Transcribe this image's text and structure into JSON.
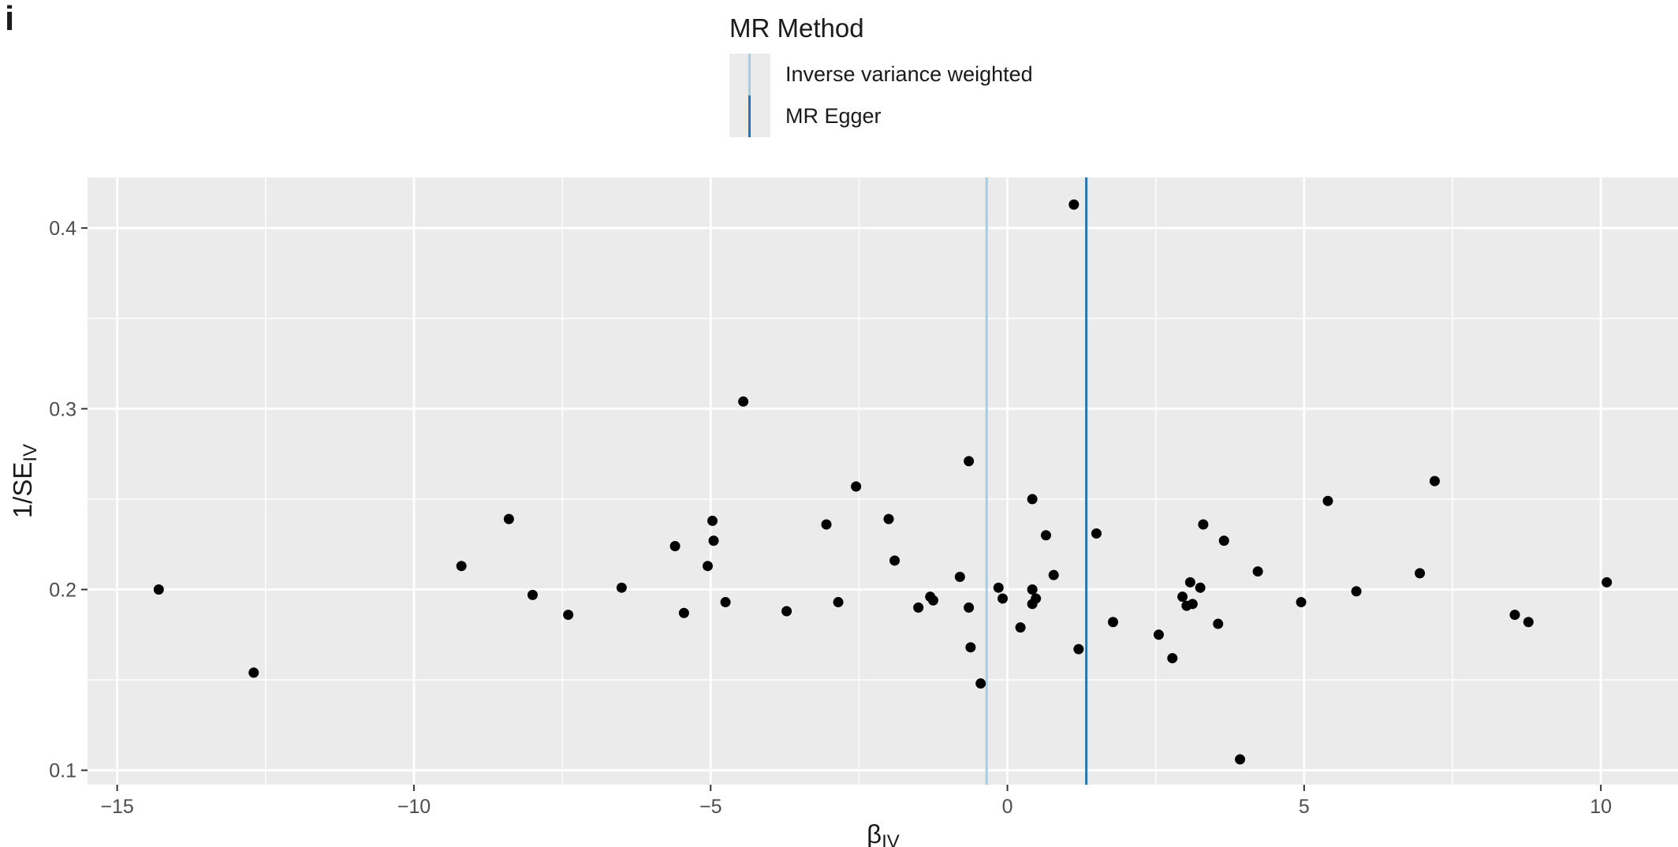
{
  "panel_label": "i",
  "legend": {
    "title": "MR Method",
    "items": [
      {
        "label": "Inverse variance weighted",
        "color": "#a6cee3"
      },
      {
        "label": "MR Egger",
        "color": "#1f78b4"
      }
    ]
  },
  "chart_data": {
    "type": "scatter",
    "xlabel_main": "β",
    "xlabel_sub": "IV",
    "ylabel_main": "1/SE",
    "ylabel_sub": "IV",
    "xlim": [
      -15.5,
      11.3
    ],
    "ylim": [
      0.092,
      0.428
    ],
    "xticks": [
      -15,
      -10,
      -5,
      0,
      5,
      10
    ],
    "xtick_labels": [
      "−15",
      "−10",
      "−5",
      "0",
      "5",
      "10"
    ],
    "yticks": [
      0.1,
      0.2,
      0.3,
      0.4
    ],
    "ytick_labels": [
      "0.1",
      "0.2",
      "0.3",
      "0.4"
    ],
    "panel_background": "#ebebeb",
    "grid": true,
    "vlines": [
      {
        "method": "Inverse variance weighted",
        "x": -0.35,
        "color": "#a6cee3"
      },
      {
        "method": "MR Egger",
        "x": 1.33,
        "color": "#1f78b4"
      }
    ],
    "points": [
      {
        "x": -14.3,
        "y": 0.2
      },
      {
        "x": -12.7,
        "y": 0.154
      },
      {
        "x": -9.2,
        "y": 0.213
      },
      {
        "x": -8.4,
        "y": 0.239
      },
      {
        "x": -8.0,
        "y": 0.197
      },
      {
        "x": -7.4,
        "y": 0.186
      },
      {
        "x": -6.5,
        "y": 0.201
      },
      {
        "x": -5.6,
        "y": 0.224
      },
      {
        "x": -5.45,
        "y": 0.187
      },
      {
        "x": -5.05,
        "y": 0.213
      },
      {
        "x": -4.97,
        "y": 0.238
      },
      {
        "x": -4.95,
        "y": 0.227
      },
      {
        "x": -4.75,
        "y": 0.193
      },
      {
        "x": -4.45,
        "y": 0.304
      },
      {
        "x": -3.72,
        "y": 0.188
      },
      {
        "x": -3.05,
        "y": 0.236
      },
      {
        "x": -2.85,
        "y": 0.193
      },
      {
        "x": -2.55,
        "y": 0.257
      },
      {
        "x": -2.0,
        "y": 0.239
      },
      {
        "x": -1.9,
        "y": 0.216
      },
      {
        "x": -1.5,
        "y": 0.19
      },
      {
        "x": -1.3,
        "y": 0.196
      },
      {
        "x": -1.25,
        "y": 0.194
      },
      {
        "x": -0.8,
        "y": 0.207
      },
      {
        "x": -0.65,
        "y": 0.271
      },
      {
        "x": -0.65,
        "y": 0.19
      },
      {
        "x": -0.62,
        "y": 0.168
      },
      {
        "x": -0.45,
        "y": 0.148
      },
      {
        "x": -0.15,
        "y": 0.201
      },
      {
        "x": -0.08,
        "y": 0.195
      },
      {
        "x": 0.22,
        "y": 0.179
      },
      {
        "x": 0.42,
        "y": 0.25
      },
      {
        "x": 0.42,
        "y": 0.2
      },
      {
        "x": 0.42,
        "y": 0.192
      },
      {
        "x": 0.48,
        "y": 0.195
      },
      {
        "x": 0.65,
        "y": 0.23
      },
      {
        "x": 0.78,
        "y": 0.208
      },
      {
        "x": 1.12,
        "y": 0.413
      },
      {
        "x": 1.2,
        "y": 0.167
      },
      {
        "x": 1.5,
        "y": 0.231
      },
      {
        "x": 1.78,
        "y": 0.182
      },
      {
        "x": 2.55,
        "y": 0.175
      },
      {
        "x": 2.78,
        "y": 0.162
      },
      {
        "x": 2.95,
        "y": 0.196
      },
      {
        "x": 3.02,
        "y": 0.191
      },
      {
        "x": 3.08,
        "y": 0.204
      },
      {
        "x": 3.12,
        "y": 0.192
      },
      {
        "x": 3.25,
        "y": 0.201
      },
      {
        "x": 3.3,
        "y": 0.236
      },
      {
        "x": 3.55,
        "y": 0.181
      },
      {
        "x": 3.65,
        "y": 0.227
      },
      {
        "x": 3.92,
        "y": 0.106
      },
      {
        "x": 4.22,
        "y": 0.21
      },
      {
        "x": 4.95,
        "y": 0.193
      },
      {
        "x": 5.4,
        "y": 0.249
      },
      {
        "x": 5.88,
        "y": 0.199
      },
      {
        "x": 6.95,
        "y": 0.209
      },
      {
        "x": 7.2,
        "y": 0.26
      },
      {
        "x": 8.55,
        "y": 0.186
      },
      {
        "x": 8.78,
        "y": 0.182
      },
      {
        "x": 10.1,
        "y": 0.204
      }
    ]
  }
}
